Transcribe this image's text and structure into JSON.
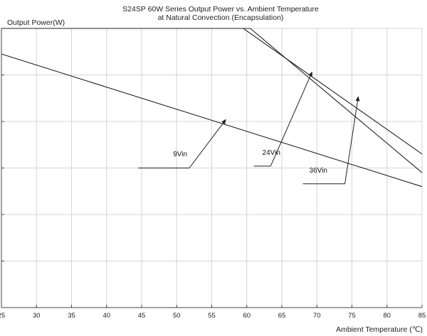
{
  "chart_data": {
    "type": "line",
    "title": "S24SP 60W Series Output Power vs. Ambient Temperature",
    "subtitle": "at Natural Convection (Encapsulation)",
    "xlabel": "Ambient Temperature (℃)",
    "ylabel": "Output Power(W)",
    "xlim": [
      25,
      85
    ],
    "ylim": [
      0,
      60
    ],
    "x_ticks": [
      25,
      30,
      35,
      40,
      45,
      50,
      55,
      60,
      65,
      70,
      75,
      80,
      85
    ],
    "y_ticks": [
      0,
      10,
      20,
      30,
      40,
      50,
      60
    ],
    "y_tick_labels_visible": false,
    "grid": true,
    "legend": "none",
    "colors": {
      "line": "#222222",
      "grid": "#d6d6d6",
      "axis": "#444444"
    },
    "series": [
      {
        "name": "9Vin",
        "x": [
          25,
          85
        ],
        "y": [
          54.5,
          26.0
        ]
      },
      {
        "name": "24Vin",
        "x": [
          25,
          60.5,
          85
        ],
        "y": [
          60,
          60,
          29.0
        ]
      },
      {
        "name": "36Vin",
        "x": [
          25,
          59.5,
          85
        ],
        "y": [
          60,
          60,
          33.0
        ]
      }
    ],
    "annotations": [
      {
        "series": "9Vin",
        "text": "9Vin",
        "label_x": 50.5,
        "label_y": 32.5,
        "leader": [
          [
            44.5,
            30.0
          ],
          [
            51.8,
            30.0
          ],
          [
            57.0,
            40.4
          ]
        ]
      },
      {
        "series": "24Vin",
        "text": "24Vin",
        "label_x": 63.5,
        "label_y": 32.8,
        "leader": [
          [
            61.0,
            30.4
          ],
          [
            63.4,
            30.4
          ],
          [
            69.3,
            50.6
          ]
        ]
      },
      {
        "series": "36Vin",
        "text": "36Vin",
        "label_x": 70.2,
        "label_y": 29.0,
        "leader": [
          [
            68.0,
            26.6
          ],
          [
            74.0,
            26.6
          ],
          [
            75.9,
            45.3
          ]
        ]
      }
    ]
  }
}
